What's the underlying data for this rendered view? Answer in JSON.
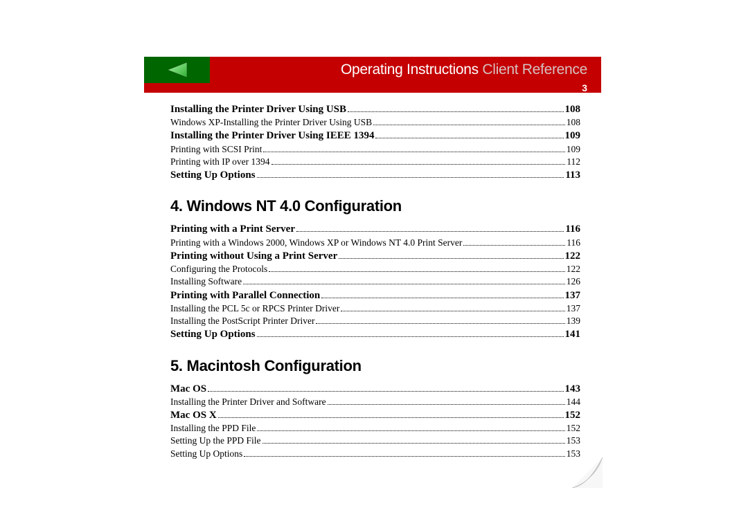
{
  "header": {
    "title_part1": "Operating Instructions ",
    "title_part2": "Client Reference",
    "page_number": "3"
  },
  "colors": {
    "header_green": "#006600",
    "header_red": "#c40000",
    "arrow_fill": "#5fdc5f",
    "arrow_stroke": "#2a8a2a"
  },
  "toc": {
    "group1": [
      {
        "style": "bold",
        "title": "Installing the Printer Driver Using USB ",
        "page": "108"
      },
      {
        "style": "regular",
        "title": "Windows XP-Installing the Printer Driver Using USB",
        "page": "108"
      },
      {
        "style": "bold",
        "title": "Installing the Printer Driver Using IEEE 1394 ",
        "page": "109"
      },
      {
        "style": "regular",
        "title": "Printing with SCSI Print",
        "page": "109"
      },
      {
        "style": "regular",
        "title": "Printing with IP over 1394 ",
        "page": "112"
      },
      {
        "style": "bold",
        "title": "Setting Up Options ",
        "page": "113"
      }
    ],
    "section4_heading": "4. Windows NT 4.0 Configuration",
    "group2": [
      {
        "style": "bold",
        "title": "Printing with a Print Server ",
        "page": "116"
      },
      {
        "style": "regular",
        "title": "Printing with a Windows 2000, Windows XP or Windows NT 4.0 Print Server ",
        "page": "116"
      },
      {
        "style": "bold",
        "title": "Printing without Using a Print Server",
        "page": "122"
      },
      {
        "style": "regular",
        "title": "Configuring the Protocols",
        "page": "122"
      },
      {
        "style": "regular",
        "title": "Installing Software",
        "page": "126"
      },
      {
        "style": "bold",
        "title": "Printing with Parallel Connection ",
        "page": "137"
      },
      {
        "style": "regular",
        "title": "Installing the PCL 5c or RPCS Printer Driver",
        "page": "137"
      },
      {
        "style": "regular",
        "title": "Installing the PostScript Printer Driver ",
        "page": "139"
      },
      {
        "style": "bold",
        "title": "Setting Up Options ",
        "page": "141"
      }
    ],
    "section5_heading": "5. Macintosh Configuration",
    "group3": [
      {
        "style": "bold",
        "title": "Mac OS ",
        "page": "143"
      },
      {
        "style": "regular",
        "title": "Installing the Printer Driver and Software",
        "page": "144"
      },
      {
        "style": "bold",
        "title": "Mac OS X ",
        "page": "152"
      },
      {
        "style": "regular",
        "title": "Installing the PPD File",
        "page": "152"
      },
      {
        "style": "regular",
        "title": "Setting Up the PPD File ",
        "page": "153"
      },
      {
        "style": "regular",
        "title": "Setting Up Options ",
        "page": "153"
      }
    ]
  }
}
